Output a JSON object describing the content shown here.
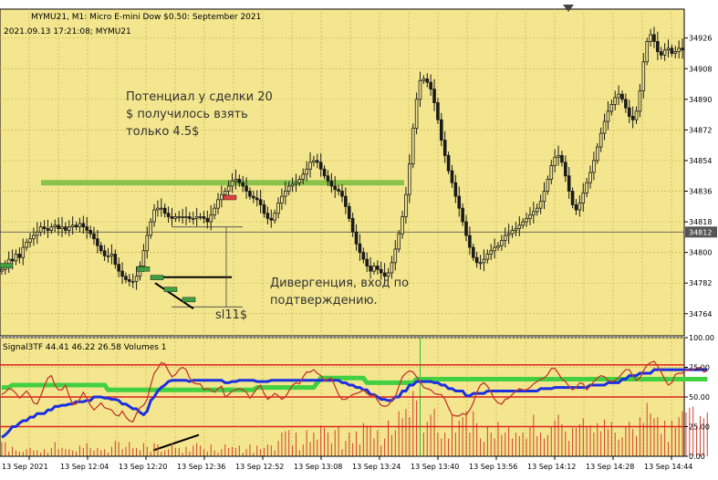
{
  "header": {
    "title": "MYMU21, M1:  Micro E-mini Dow $0.50: September 2021",
    "timestamp": "2021.09.13 17:21:08; MYMU21"
  },
  "annotations": {
    "note_profit": [
      "Потенциал у сделки 20",
      "$ получилось взять",
      "только 4.5$"
    ],
    "note_divergence": [
      "Дивергенция, вход по",
      "подтверждению."
    ],
    "note_sl": "sl11$"
  },
  "indicator": {
    "label": "Signal3TF 44.41 46.22 26.58 Volumes 1",
    "values": {
      "line1": 44.41,
      "line2": 46.22,
      "line3": 26.58
    }
  },
  "colors": {
    "background": "#f3e68f",
    "grid": "#c8b450",
    "candle": "#1a1a1a",
    "level_line": "#8bc34a",
    "current_price": "#444444",
    "rsi_line": "#c0392b",
    "signal_blue": "#1c2fe0",
    "signal_green": "#40d040",
    "red_level": "#e02020",
    "volume": "#d04030",
    "volume_highlight": "#30c030",
    "price_label_bg": "#555555",
    "price_label_fg": "#ffffff"
  },
  "chart_data": [
    {
      "type": "candlestick",
      "symbol": "MYMU21",
      "timeframe": "M1",
      "y_ticks": [
        34926,
        34908,
        34890,
        34872,
        34854,
        34836,
        34818,
        34800,
        34782,
        34764
      ],
      "ylim": [
        34751,
        34943
      ],
      "current_price": 34812,
      "horizontal_level": 34841,
      "x_labels": [
        "13 Sep 2021",
        "13 Sep 12:04",
        "13 Sep 12:20",
        "13 Sep 12:36",
        "13 Sep 12:52",
        "13 Sep 13:08",
        "13 Sep 13:24",
        "13 Sep 13:40",
        "13 Sep 13:56",
        "13 Sep 14:12",
        "13 Sep 14:28",
        "13 Sep 14:44"
      ],
      "close": [
        34790,
        34792,
        34796,
        34795,
        34799,
        34797,
        34803,
        34806,
        34808,
        34810,
        34812,
        34815,
        34814,
        34813,
        34815,
        34816,
        34814,
        34815,
        34813,
        34815,
        34816,
        34815,
        34817,
        34815,
        34813,
        34811,
        34808,
        34804,
        34801,
        34798,
        34798,
        34799,
        34793,
        34789,
        34786,
        34784,
        34783,
        34783,
        34786,
        34792,
        34801,
        34810,
        34818,
        34825,
        34826,
        34826,
        34823,
        34821,
        34820,
        34821,
        34821,
        34821,
        34821,
        34820,
        34820,
        34821,
        34821,
        34820,
        34818,
        34822,
        34826,
        34831,
        34834,
        34836,
        34839,
        34842,
        34843,
        34841,
        34839,
        34836,
        34833,
        34832,
        34831,
        34828,
        34823,
        34820,
        34819,
        34823,
        34829,
        34833,
        34836,
        34839,
        34840,
        34841,
        34843,
        34846,
        34849,
        34853,
        34854,
        34853,
        34849,
        34845,
        34842,
        34839,
        34837,
        34836,
        34833,
        34827,
        34820,
        34812,
        34805,
        34800,
        34796,
        34792,
        34789,
        34792,
        34790,
        34788,
        34786,
        34788,
        34794,
        34802,
        34811,
        34821,
        34834,
        34852,
        34873,
        34890,
        34901,
        34902,
        34900,
        34896,
        34888,
        34878,
        34866,
        34857,
        34848,
        34841,
        34833,
        34826,
        34818,
        34810,
        34803,
        34797,
        34794,
        34794,
        34796,
        34799,
        34801,
        34803,
        34804,
        34807,
        34810,
        34811,
        34813,
        34814,
        34816,
        34818,
        34820,
        34822,
        34824,
        34826,
        34830,
        34836,
        34843,
        34851,
        34856,
        34857,
        34853,
        34845,
        34836,
        34828,
        34825,
        34829,
        34835,
        34841,
        34847,
        34854,
        34862,
        34870,
        34877,
        34883,
        34887,
        34891,
        34893,
        34890,
        34885,
        34880,
        34878,
        34883,
        34895,
        34912,
        34924,
        34928,
        34924,
        34918,
        34916,
        34919,
        34920,
        34917,
        34918,
        34920,
        34919
      ]
    },
    {
      "type": "line",
      "name": "Signal3TF",
      "y_ticks": [
        100.0,
        75.0,
        50.0,
        25.0,
        0.0
      ],
      "ylim": [
        0,
        100
      ],
      "levels": [
        77,
        50,
        25
      ],
      "series": [
        {
          "values": [
            52,
            54,
            57,
            56,
            53,
            49,
            52,
            55,
            51,
            45,
            44,
            51,
            59,
            66,
            68,
            60,
            56,
            56,
            60,
            51,
            44,
            44,
            48,
            54,
            49,
            43,
            39,
            42,
            45,
            41,
            40,
            39,
            35,
            34,
            38,
            33,
            30,
            29,
            36,
            41,
            43,
            48,
            60,
            70,
            74,
            79,
            78,
            72,
            67,
            69,
            73,
            75,
            73,
            66,
            62,
            61,
            61,
            56,
            57,
            56,
            54,
            57,
            59,
            50,
            52,
            55,
            56,
            57,
            56,
            54,
            49,
            53,
            57,
            60,
            53,
            48,
            50,
            53,
            51,
            48,
            50,
            55,
            60,
            62,
            61,
            67,
            71,
            71,
            73,
            70,
            68,
            64,
            65,
            66,
            59,
            52,
            48,
            48,
            50,
            52,
            53,
            54,
            56,
            53,
            51,
            52,
            47,
            43,
            42,
            43,
            47,
            50,
            59,
            67,
            70,
            72,
            71,
            67,
            63,
            58,
            57,
            56,
            53,
            52,
            52,
            48,
            41,
            35,
            34,
            34,
            36,
            35,
            39,
            45,
            54,
            60,
            62,
            59,
            54,
            48,
            45,
            44,
            48,
            49,
            52,
            55,
            57,
            56,
            56,
            58,
            61,
            63,
            65,
            66,
            69,
            74,
            74,
            70,
            65,
            63,
            59,
            56,
            58,
            62,
            61,
            56,
            59,
            63,
            66,
            68,
            67,
            64,
            63,
            64,
            66,
            70,
            73,
            73,
            68,
            64,
            66,
            72,
            77,
            79,
            80,
            76,
            71,
            65,
            60,
            62,
            69,
            70,
            70,
            73,
            73,
            73,
            74,
            75,
            71,
            72
          ]
        },
        {
          "values": [
            16,
            18,
            21,
            25,
            25,
            28,
            30,
            30,
            33,
            33,
            36,
            36,
            36,
            39,
            39,
            42,
            42,
            43,
            43,
            44,
            44,
            46,
            46,
            46,
            47,
            47,
            50,
            50,
            50,
            49,
            49,
            48,
            48,
            47,
            44,
            44,
            42,
            40,
            40,
            37,
            35,
            38,
            47,
            50,
            55,
            58,
            60,
            63,
            64,
            64,
            64,
            64,
            64,
            63,
            64,
            64,
            64,
            64,
            64,
            64,
            64,
            64,
            64,
            62,
            62,
            63,
            63,
            64,
            64,
            64,
            64,
            64,
            63,
            63,
            63,
            63,
            64,
            64,
            64,
            64,
            64,
            64,
            64,
            64,
            64,
            64,
            64,
            64,
            64,
            64,
            64,
            64,
            64,
            64,
            64,
            64,
            62,
            62,
            60,
            60,
            58,
            58,
            56,
            56,
            52,
            52,
            50,
            48,
            48,
            47,
            47,
            50,
            50,
            55,
            55,
            60,
            60,
            63,
            63,
            63,
            63,
            63,
            62,
            62,
            60,
            60,
            57,
            57,
            55,
            55,
            55,
            51,
            51,
            53,
            53,
            53,
            53,
            55,
            55,
            55,
            55,
            55,
            55,
            55,
            55,
            55,
            55,
            55,
            55,
            55,
            55,
            55,
            57,
            57,
            57,
            57,
            58,
            58,
            58,
            58,
            58,
            58,
            58,
            58,
            58,
            58,
            60,
            60,
            60,
            60,
            60,
            62,
            62,
            62,
            62,
            65,
            65,
            68,
            68,
            68,
            70,
            70,
            70,
            70,
            73,
            73,
            73,
            73,
            73,
            73,
            73,
            73,
            73,
            73,
            73,
            73,
            73,
            73,
            73,
            73
          ]
        },
        {
          "values": [
            58,
            58,
            58,
            60,
            60,
            60,
            60,
            60,
            60,
            60,
            60,
            60,
            60,
            60,
            60,
            60,
            60,
            60,
            60,
            60,
            60,
            60,
            60,
            60,
            60,
            60,
            60,
            60,
            60,
            60,
            56,
            56,
            56,
            56,
            56,
            56,
            56,
            56,
            56,
            56,
            56,
            56,
            56,
            56,
            56,
            56,
            56,
            56,
            56,
            56,
            56,
            56,
            56,
            56,
            56,
            56,
            56,
            56,
            56,
            56,
            56,
            56,
            56,
            56,
            56,
            56,
            56,
            56,
            56,
            56,
            56,
            56,
            58,
            58,
            58,
            58,
            58,
            58,
            58,
            58,
            58,
            58,
            58,
            58,
            58,
            58,
            58,
            58,
            58,
            62,
            66,
            66,
            66,
            66,
            66,
            66,
            66,
            66,
            66,
            66,
            66,
            66,
            66,
            62,
            62,
            62,
            62,
            62,
            62,
            62,
            62,
            62,
            62,
            62,
            62,
            62,
            62,
            65,
            65,
            65,
            65,
            65,
            65,
            65,
            65,
            65,
            65,
            65,
            65,
            65,
            65,
            65,
            65,
            65,
            65,
            65,
            65,
            65,
            65,
            65,
            65,
            65,
            65,
            65,
            65,
            65,
            65,
            65,
            65,
            65,
            65,
            65,
            65,
            65,
            65,
            65,
            65,
            65,
            65,
            65,
            65,
            65,
            65,
            65,
            65,
            65,
            65,
            65,
            65,
            65,
            65,
            65,
            65,
            65,
            65,
            65,
            65,
            65,
            65,
            65,
            65,
            65,
            65,
            65,
            65,
            65,
            65,
            65,
            65,
            65,
            65,
            65,
            65,
            65,
            65,
            65,
            65,
            65,
            65,
            65
          ]
        },
        {
          "name": "Volumes",
          "values": [
            12,
            12,
            4,
            8,
            5,
            4,
            4,
            6,
            7,
            5,
            5,
            3,
            6,
            3,
            7,
            12,
            6,
            7,
            6,
            6,
            5,
            4,
            9,
            7,
            11,
            7,
            5,
            7,
            5,
            6,
            3,
            8,
            13,
            12,
            6,
            8,
            12,
            7,
            7,
            5,
            11,
            8,
            4,
            11,
            10,
            4,
            5,
            6,
            11,
            7,
            7,
            3,
            8,
            4,
            9,
            11,
            9,
            6,
            4,
            10,
            5,
            3,
            6,
            10,
            7,
            8,
            7,
            9,
            3,
            6,
            10,
            3,
            9,
            6,
            7,
            10,
            9,
            5,
            13,
            20,
            21,
            22,
            9,
            20,
            5,
            10,
            22,
            12,
            20,
            14,
            26,
            24,
            20,
            11,
            22,
            25,
            6,
            13,
            20,
            11,
            21,
            10,
            28,
            26,
            26,
            15,
            22,
            9,
            15,
            30,
            18,
            22,
            38,
            32,
            40,
            33,
            55,
            47,
            100,
            20,
            29,
            35,
            40,
            20,
            15,
            20,
            15,
            35,
            20,
            30,
            33,
            38,
            20,
            38,
            28,
            15,
            12,
            25,
            20,
            15,
            29,
            18,
            20,
            25,
            15,
            20,
            17,
            20,
            15,
            25,
            35,
            17,
            20,
            15,
            18,
            25,
            30,
            35,
            27,
            21,
            13,
            24,
            24,
            27,
            32,
            25,
            26,
            20,
            28,
            21,
            31,
            23,
            29,
            20,
            14,
            16,
            25,
            29,
            23,
            17,
            33,
            28,
            45,
            36,
            32,
            33,
            19,
            30,
            12,
            30,
            24,
            33,
            38,
            37,
            41,
            42,
            26,
            34,
            32,
            37
          ]
        }
      ]
    }
  ]
}
